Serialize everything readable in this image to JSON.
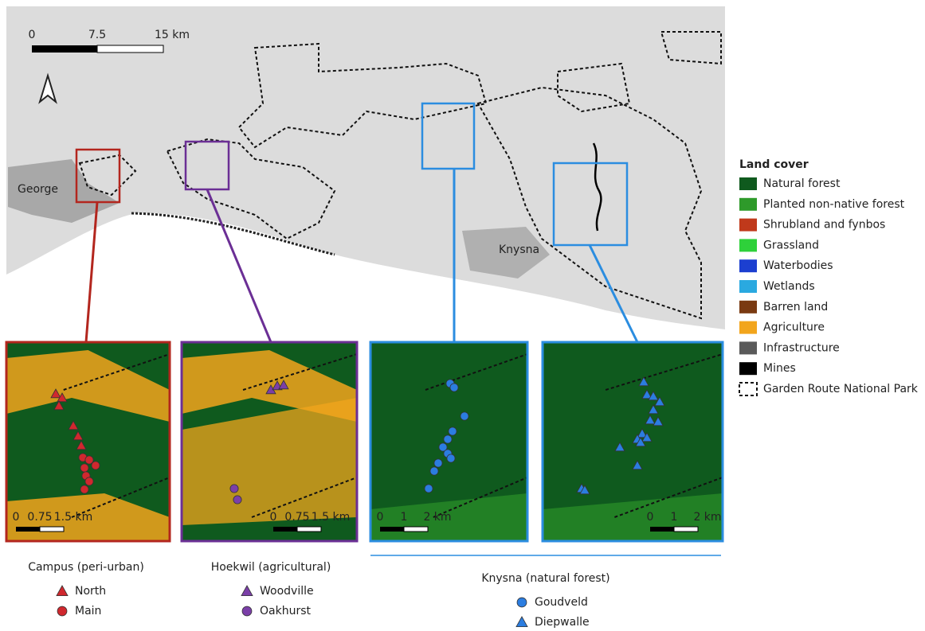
{
  "map": {
    "scale_labels": [
      "0",
      "7.5",
      "15 km"
    ],
    "places": [
      "George",
      "Knysna"
    ]
  },
  "legend": {
    "title": "Land cover",
    "items": [
      {
        "label": "Natural forest",
        "color": "#0f5a1e"
      },
      {
        "label": "Planted non-native forest",
        "color": "#2e9a2a"
      },
      {
        "label": "Shrubland and fynbos",
        "color": "#c0391b"
      },
      {
        "label": "Grassland",
        "color": "#2ed13a"
      },
      {
        "label": "Waterbodies",
        "color": "#1c3fd0"
      },
      {
        "label": "Wetlands",
        "color": "#2aa9e0"
      },
      {
        "label": "Barren land",
        "color": "#7a3a12"
      },
      {
        "label": "Agriculture",
        "color": "#f2a51c"
      },
      {
        "label": "Infrastructure",
        "color": "#5a5a5a"
      },
      {
        "label": "Mines",
        "color": "#000000"
      },
      {
        "label": "Garden Route National Park",
        "color": "#ffffff"
      }
    ]
  },
  "insets": [
    {
      "scale_labels": [
        "0",
        "0.75",
        "1.5 km"
      ]
    },
    {
      "scale_labels": [
        "0",
        "0.75",
        "1.5 km"
      ]
    },
    {
      "scale_labels": [
        "0",
        "1",
        "2 km"
      ]
    },
    {
      "scale_labels": [
        "0",
        "1",
        "2 km"
      ]
    }
  ],
  "groups": [
    {
      "caption": "Campus (peri-urban)",
      "sites": [
        {
          "label": "North",
          "color": "#d0282e",
          "marker": "triangle"
        },
        {
          "label": "Main",
          "color": "#d0282e",
          "marker": "circle"
        }
      ]
    },
    {
      "caption": "Hoekwil (agricultural)",
      "sites": [
        {
          "label": "Woodville",
          "color": "#7b3fa8",
          "marker": "triangle"
        },
        {
          "label": "Oakhurst",
          "color": "#7b3fa8",
          "marker": "circle"
        }
      ]
    },
    {
      "caption": "Knysna (natural forest)",
      "sites": [
        {
          "label": "Goudveld",
          "color": "#2b7de0",
          "marker": "circle"
        },
        {
          "label": "Diepwalle",
          "color": "#2b7de0",
          "marker": "triangle"
        }
      ]
    }
  ]
}
